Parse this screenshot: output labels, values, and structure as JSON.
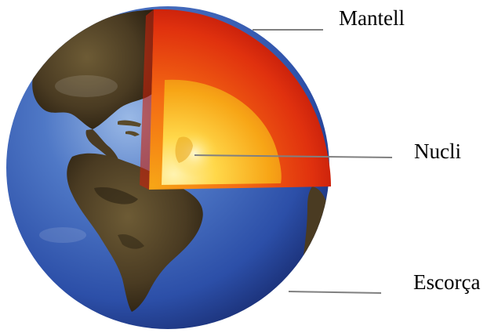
{
  "labels": {
    "mantle": "Mantell",
    "core": "Nucli",
    "crust": "Escorça"
  },
  "colors": {
    "ocean": "#2c4fa8",
    "ocean_light": "#7fa3dc",
    "land": "#4a3b22",
    "land_dark": "#2a2112",
    "mantle_outer": "#d11a0c",
    "mantle_inner": "#f25a12",
    "core_outer": "#f7a516",
    "core_inner": "#ffe27a",
    "leader_line": "#808080"
  }
}
